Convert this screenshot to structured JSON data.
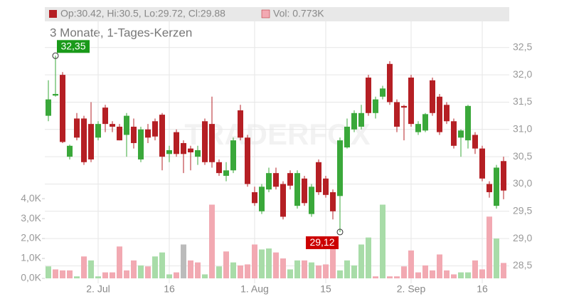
{
  "chart_data": {
    "type": "candlestick",
    "header_ohlc": "Op:30.42, Hi:30.5, Lo:29.72, Cl:29.88",
    "header_vol": "Vol: 0.773K",
    "subtitle": "3 Monate, 1-Tages-Kerzen",
    "watermark": "TRADERFOX",
    "categories": [
      null,
      null,
      null,
      null,
      null,
      null,
      null,
      "2. Jul",
      null,
      null,
      null,
      null,
      null,
      null,
      null,
      null,
      null,
      "16",
      null,
      null,
      null,
      null,
      null,
      null,
      null,
      null,
      null,
      null,
      null,
      "1. Aug",
      null,
      null,
      null,
      null,
      null,
      null,
      null,
      null,
      null,
      "15",
      null,
      null,
      null,
      null,
      null,
      null,
      null,
      null,
      null,
      null,
      null,
      "2. Sep",
      null,
      null,
      null,
      null,
      null,
      null,
      null,
      null,
      null,
      "16",
      null,
      null,
      null
    ],
    "open": [
      31.25,
      31.62,
      32.0,
      30.5,
      31.2,
      31.2,
      31.1,
      30.85,
      31.4,
      31.1,
      31.05,
      30.9,
      31.05,
      30.45,
      31.0,
      31.15,
      31.27,
      30.55,
      30.95,
      30.75,
      30.65,
      30.5,
      31.15,
      31.1,
      30.4,
      30.15,
      30.25,
      31.35,
      30.85,
      29.85,
      29.5,
      29.9,
      30.2,
      30.0,
      30.2,
      29.6,
      30.1,
      29.45,
      30.4,
      30.1,
      29.85,
      29.78,
      30.67,
      31.0,
      31.05,
      31.95,
      31.3,
      31.6,
      32.2,
      31.5,
      31.43,
      31.95,
      30.95,
      30.98,
      31.9,
      31.6,
      31.45,
      31.15,
      30.85,
      30.8,
      30.9,
      30.65,
      30.0,
      29.6,
      30.42
    ],
    "high": [
      31.9,
      32.35,
      32.05,
      30.72,
      31.3,
      31.25,
      31.5,
      31.15,
      31.45,
      31.15,
      31.1,
      31.3,
      31.2,
      31.05,
      31.1,
      31.2,
      31.3,
      30.7,
      31.0,
      30.8,
      30.7,
      30.7,
      31.2,
      31.6,
      30.45,
      30.4,
      30.85,
      31.45,
      30.9,
      29.95,
      30.0,
      30.3,
      30.3,
      30.05,
      30.25,
      30.25,
      30.15,
      30.0,
      30.45,
      30.15,
      29.9,
      30.85,
      31.2,
      31.35,
      31.45,
      32.0,
      31.6,
      31.8,
      32.25,
      31.55,
      31.45,
      32.0,
      31.15,
      31.3,
      31.95,
      31.65,
      31.5,
      31.2,
      31.0,
      31.45,
      30.95,
      30.7,
      30.05,
      30.35,
      30.5
    ],
    "low": [
      31.15,
      31.6,
      30.75,
      30.45,
      30.8,
      30.35,
      30.4,
      30.8,
      30.95,
      30.95,
      30.8,
      30.5,
      30.65,
      30.4,
      30.75,
      30.8,
      30.25,
      30.4,
      30.5,
      30.2,
      30.25,
      30.35,
      30.35,
      30.3,
      30.15,
      30.05,
      30.2,
      30.8,
      29.95,
      29.6,
      29.45,
      29.85,
      29.9,
      29.35,
      29.9,
      29.55,
      29.6,
      29.4,
      29.8,
      29.75,
      29.35,
      29.12,
      30.65,
      30.95,
      31.0,
      31.25,
      31.2,
      31.55,
      31.45,
      30.95,
      30.8,
      31.05,
      30.9,
      30.95,
      31.25,
      30.9,
      31.1,
      30.65,
      30.5,
      30.65,
      30.55,
      30.05,
      29.75,
      29.55,
      29.72
    ],
    "close": [
      31.55,
      31.65,
      30.77,
      30.7,
      30.85,
      30.4,
      30.45,
      31.1,
      31.1,
      31.05,
      30.8,
      31.25,
      30.75,
      31.0,
      30.85,
      30.87,
      30.5,
      30.62,
      30.55,
      30.55,
      30.58,
      30.62,
      30.4,
      30.4,
      30.2,
      30.25,
      30.8,
      30.85,
      30.0,
      29.65,
      29.95,
      30.2,
      29.95,
      29.4,
      29.97,
      30.2,
      29.65,
      29.95,
      29.85,
      29.8,
      29.5,
      30.8,
      31.05,
      31.3,
      31.3,
      31.3,
      31.55,
      31.75,
      31.5,
      31.05,
      31.4,
      31.1,
      31.1,
      31.28,
      31.3,
      30.95,
      31.15,
      30.7,
      30.98,
      31.43,
      30.65,
      30.1,
      29.85,
      30.3,
      29.88
    ],
    "up_color": "#3aa83a",
    "down_color": "#b51f24",
    "volume": [
      0.6,
      0.45,
      0.4,
      0.4,
      0.1,
      1.1,
      0.9,
      0.1,
      0.3,
      0.3,
      1.6,
      0.4,
      0.9,
      0.65,
      0.6,
      1.1,
      1.3,
      0.2,
      0.3,
      1.7,
      0.9,
      0.8,
      0.2,
      3.7,
      0.6,
      1.35,
      0.8,
      0.65,
      0.7,
      1.7,
      1.45,
      1.5,
      1.3,
      1.0,
      0.45,
      0.9,
      0.9,
      0.8,
      0.65,
      0.7,
      1.6,
      0.4,
      0.9,
      0.65,
      1.7,
      2.05,
      0.1,
      3.7,
      0.1,
      0.1,
      0.6,
      1.4,
      0.3,
      0.65,
      0.4,
      1.2,
      0.4,
      0.2,
      0.3,
      0.3,
      0.9,
      0.45,
      3.1,
      2.0,
      0.773
    ],
    "volume_colors": [
      "#a8dca8",
      "#f2a9b2",
      "#f2a9b2",
      "#f2a9b2",
      "#a8dca8",
      "#f2a9b2",
      "#a8dca8",
      "#a8dca8",
      "#f2a9b2",
      "#f2a9b2",
      "#f2a9b2",
      "#f2a9b2",
      "#f2a9b2",
      "#a8dca8",
      "#f2a9b2",
      "#a8dca8",
      "#a8dca8",
      "#a8dca8",
      "#f2a9b2",
      "#bbbbbb",
      "#f2a9b2",
      "#f2a9b2",
      "#a8dca8",
      "#f2a9b2",
      "#a8dca8",
      "#f2a9b2",
      "#a8dca8",
      "#f2a9b2",
      "#f2a9b2",
      "#f2a9b2",
      "#a8dca8",
      "#a8dca8",
      "#f2a9b2",
      "#f2a9b2",
      "#a8dca8",
      "#a8dca8",
      "#f2a9b2",
      "#a8dca8",
      "#f2a9b2",
      "#f2a9b2",
      "#f2a9b2",
      "#a8dca8",
      "#a8dca8",
      "#a8dca8",
      "#a8dca8",
      "#a8dca8",
      "#f2a9b2",
      "#a8dca8",
      "#f2a9b2",
      "#f2a9b2",
      "#f2a9b2",
      "#f2a9b2",
      "#f2a9b2",
      "#f2a9b2",
      "#f2a9b2",
      "#f2a9b2",
      "#f2a9b2",
      "#f2a9b2",
      "#a8dca8",
      "#a8dca8",
      "#f2a9b2",
      "#f2a9b2",
      "#f2a9b2",
      "#a8dca8",
      "#f2a9b2"
    ],
    "ylim": [
      28.18,
      32.98
    ],
    "yticks": [
      {
        "value": 28.5,
        "label": "28,5"
      },
      {
        "value": 29.0,
        "label": "29,0"
      },
      {
        "value": 29.5,
        "label": "29,5"
      },
      {
        "value": 30.0,
        "label": "30,0"
      },
      {
        "value": 30.5,
        "label": "30,5"
      },
      {
        "value": 31.0,
        "label": "31,0"
      },
      {
        "value": 31.5,
        "label": "31,5"
      },
      {
        "value": 32.0,
        "label": "32,0"
      },
      {
        "value": 32.5,
        "label": "32,5"
      }
    ],
    "y2lim": [
      -0.25,
      12.9
    ],
    "y2ticks": [
      {
        "value": 0,
        "label": "0,0K"
      },
      {
        "value": 1,
        "label": "1,0K"
      },
      {
        "value": 2,
        "label": "2,0K"
      },
      {
        "value": 3,
        "label": "3,0K"
      },
      {
        "value": 4,
        "label": "4,0K"
      }
    ],
    "annotations": [
      {
        "text": "32,35",
        "value": 32.35,
        "index": 1,
        "color": "#1a9a1a"
      },
      {
        "text": "29,12",
        "value": 29.12,
        "index": 41,
        "color": "#cc0000"
      }
    ],
    "grid": true
  }
}
